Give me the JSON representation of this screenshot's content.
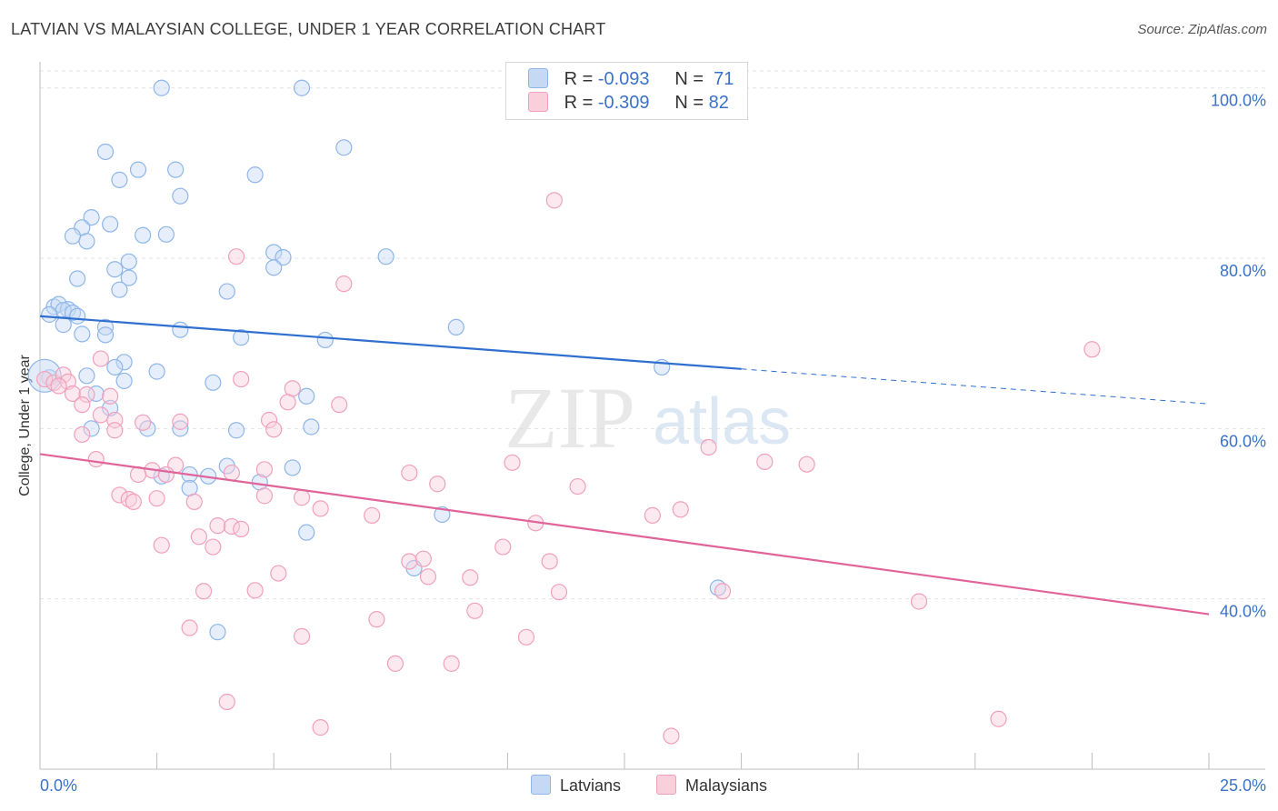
{
  "title": "LATVIAN VS MALAYSIAN COLLEGE, UNDER 1 YEAR CORRELATION CHART",
  "source": "Source: ZipAtlas.com",
  "watermark": {
    "zip": "ZIP",
    "atlas": "atlas"
  },
  "legend": {
    "r_label": "R =",
    "n_label": "N =",
    "items": [
      {
        "r": "-0.093",
        "n": "71",
        "color": "#8fb6ea",
        "fill": "#c5d9f4"
      },
      {
        "r": "-0.309",
        "n": "82",
        "color": "#f0a0bc",
        "fill": "#f9cfdc"
      }
    ]
  },
  "bottom_legend": {
    "latvians": "Latvians",
    "malaysians": "Malaysians"
  },
  "chart_data": {
    "type": "scatter",
    "title": "LATVIAN VS MALAYSIAN COLLEGE, UNDER 1 YEAR CORRELATION CHART",
    "xlabel": "",
    "ylabel": "College, Under 1 year",
    "xlim": [
      0,
      25
    ],
    "ylim": [
      20,
      102
    ],
    "x_tick_labels": [
      "0.0%",
      "25.0%"
    ],
    "y_ticks": [
      40,
      60,
      80,
      100
    ],
    "y_tick_labels": [
      "40.0%",
      "60.0%",
      "80.0%",
      "100.0%"
    ],
    "grid": true,
    "legend_position": "top-center",
    "series": [
      {
        "name": "Latvians",
        "color": "#5b8fd6",
        "trend": {
          "x0": 0,
          "y0": 73.2,
          "x1": 15,
          "y1": 67.0,
          "dash_to": 25,
          "dash_y": 62.9
        },
        "points": [
          [
            2.6,
            100
          ],
          [
            5.6,
            100
          ],
          [
            6.5,
            93
          ],
          [
            1.4,
            92.5
          ],
          [
            2.1,
            90.4
          ],
          [
            2.9,
            90.4
          ],
          [
            4.6,
            89.8
          ],
          [
            1.7,
            89.2
          ],
          [
            3.0,
            87.3
          ],
          [
            1.1,
            84.8
          ],
          [
            1.5,
            84.0
          ],
          [
            0.9,
            83.6
          ],
          [
            0.7,
            82.6
          ],
          [
            2.2,
            82.7
          ],
          [
            2.7,
            82.8
          ],
          [
            1.0,
            82
          ],
          [
            5.0,
            80.7
          ],
          [
            5.2,
            80.1
          ],
          [
            7.4,
            80.2
          ],
          [
            1.9,
            79.6
          ],
          [
            1.6,
            78.7
          ],
          [
            5.0,
            78.9
          ],
          [
            1.9,
            77.7
          ],
          [
            0.8,
            77.6
          ],
          [
            1.7,
            76.3
          ],
          [
            4.0,
            76.1
          ],
          [
            0.3,
            74.3
          ],
          [
            0.4,
            74.6
          ],
          [
            0.6,
            74.0
          ],
          [
            0.5,
            73.9
          ],
          [
            0.2,
            73.4
          ],
          [
            0.7,
            73.6
          ],
          [
            0.8,
            73.2
          ],
          [
            0.5,
            72.2
          ],
          [
            1.4,
            71.9
          ],
          [
            3.0,
            71.6
          ],
          [
            8.9,
            71.9
          ],
          [
            1.4,
            71.0
          ],
          [
            0.9,
            71.1
          ],
          [
            4.3,
            70.7
          ],
          [
            6.1,
            70.4
          ],
          [
            1.8,
            67.8
          ],
          [
            1.6,
            67.2
          ],
          [
            2.5,
            66.7
          ],
          [
            1.0,
            66.2
          ],
          [
            1.8,
            65.6
          ],
          [
            3.7,
            65.4
          ],
          [
            13.3,
            67.2
          ],
          [
            1.2,
            64.1
          ],
          [
            5.7,
            63.8
          ],
          [
            1.5,
            62.4
          ],
          [
            0.2,
            66
          ],
          [
            1.1,
            60
          ],
          [
            2.3,
            60
          ],
          [
            3.0,
            60
          ],
          [
            4.2,
            59.8
          ],
          [
            5.8,
            60.2
          ],
          [
            4.0,
            55.6
          ],
          [
            5.4,
            55.4
          ],
          [
            2.6,
            54.4
          ],
          [
            3.2,
            54.6
          ],
          [
            3.6,
            54.4
          ],
          [
            4.7,
            53.7
          ],
          [
            3.2,
            53.0
          ],
          [
            8.6,
            49.9
          ],
          [
            5.7,
            47.8
          ],
          [
            8.0,
            43.6
          ],
          [
            14.5,
            41.3
          ],
          [
            3.8,
            36.1
          ]
        ]
      },
      {
        "name": "Malaysians",
        "color": "#e86a98",
        "trend": {
          "x0": 0,
          "y0": 57,
          "x1": 25,
          "y1": 38.2
        },
        "points": [
          [
            11.0,
            86.8
          ],
          [
            4.2,
            80.2
          ],
          [
            6.5,
            77.0
          ],
          [
            22.5,
            69.3
          ],
          [
            1.3,
            68.2
          ],
          [
            0.1,
            65.8
          ],
          [
            0.3,
            65.4
          ],
          [
            0.5,
            66.3
          ],
          [
            0.6,
            65.5
          ],
          [
            0.4,
            65.0
          ],
          [
            0.7,
            64.1
          ],
          [
            4.3,
            65.8
          ],
          [
            5.4,
            64.7
          ],
          [
            1.0,
            64.0
          ],
          [
            1.5,
            63.8
          ],
          [
            0.9,
            62.8
          ],
          [
            5.3,
            63.1
          ],
          [
            6.4,
            62.8
          ],
          [
            1.6,
            61.0
          ],
          [
            1.3,
            61.6
          ],
          [
            2.2,
            60.7
          ],
          [
            3.0,
            60.8
          ],
          [
            4.9,
            61.0
          ],
          [
            1.6,
            59.8
          ],
          [
            5.0,
            59.9
          ],
          [
            0.9,
            59.3
          ],
          [
            1.2,
            56.4
          ],
          [
            2.9,
            55.7
          ],
          [
            10.1,
            56.0
          ],
          [
            14.3,
            57.8
          ],
          [
            15.5,
            56.1
          ],
          [
            16.4,
            55.8
          ],
          [
            2.4,
            55.1
          ],
          [
            2.7,
            54.6
          ],
          [
            2.1,
            54.6
          ],
          [
            4.1,
            54.8
          ],
          [
            4.8,
            55.2
          ],
          [
            7.9,
            54.8
          ],
          [
            8.5,
            53.5
          ],
          [
            11.5,
            53.2
          ],
          [
            1.7,
            52.2
          ],
          [
            2.5,
            51.8
          ],
          [
            3.3,
            51.4
          ],
          [
            4.8,
            52.1
          ],
          [
            5.6,
            51.9
          ],
          [
            6.0,
            50.6
          ],
          [
            1.9,
            51.7
          ],
          [
            2.0,
            51.4
          ],
          [
            7.1,
            49.8
          ],
          [
            10.6,
            48.9
          ],
          [
            13.1,
            49.8
          ],
          [
            13.7,
            50.5
          ],
          [
            3.8,
            48.6
          ],
          [
            4.1,
            48.5
          ],
          [
            4.3,
            48.2
          ],
          [
            3.4,
            47.3
          ],
          [
            2.6,
            46.3
          ],
          [
            3.7,
            46.1
          ],
          [
            9.9,
            46.1
          ],
          [
            7.9,
            44.4
          ],
          [
            8.2,
            44.7
          ],
          [
            10.9,
            44.4
          ],
          [
            5.1,
            43.0
          ],
          [
            8.3,
            42.6
          ],
          [
            9.2,
            42.5
          ],
          [
            3.5,
            40.9
          ],
          [
            4.6,
            41.0
          ],
          [
            11.1,
            40.8
          ],
          [
            14.6,
            40.9
          ],
          [
            18.8,
            39.7
          ],
          [
            9.3,
            38.6
          ],
          [
            7.2,
            37.6
          ],
          [
            3.2,
            36.6
          ],
          [
            5.6,
            35.6
          ],
          [
            10.4,
            35.5
          ],
          [
            7.6,
            32.4
          ],
          [
            8.8,
            32.4
          ],
          [
            4.0,
            27.9
          ],
          [
            6.0,
            24.9
          ],
          [
            13.5,
            23.9
          ],
          [
            20.5,
            25.9
          ]
        ]
      }
    ]
  }
}
